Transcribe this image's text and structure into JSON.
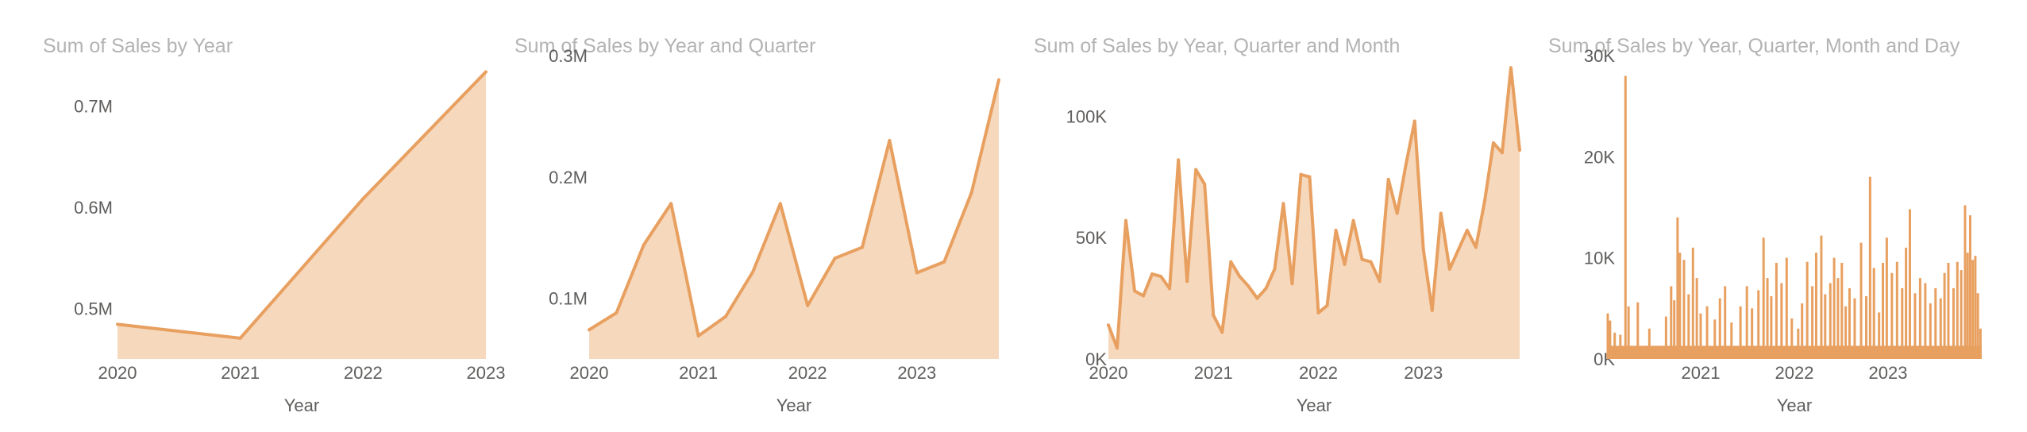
{
  "style": {
    "line_color": "#E8A060",
    "fill_color": "#F6D8BD",
    "title_color": "#B3B3B3",
    "tick_color": "#605E5C"
  },
  "chart_data": [
    {
      "type": "area",
      "title": "Sum of Sales by Year",
      "xlabel": "Year",
      "ylabel": "",
      "categories": [
        "2020",
        "2021",
        "2022",
        "2023"
      ],
      "values": [
        484247,
        470533,
        608474,
        733947
      ],
      "ylim": [
        450000,
        750000
      ],
      "yticks": [
        500000,
        600000,
        700000
      ],
      "ytick_labels": [
        "0.5M",
        "0.6M",
        "0.7M"
      ],
      "xticks": [
        0,
        1,
        2,
        3
      ],
      "xtick_labels": [
        "2020",
        "2021",
        "2022",
        "2023"
      ]
    },
    {
      "type": "area",
      "title": "Sum of Sales by Year and Quarter",
      "xlabel": "Year",
      "ylabel": "",
      "x": [
        0,
        1,
        2,
        3,
        4,
        5,
        6,
        7,
        8,
        9,
        10,
        11,
        12,
        13,
        14,
        15
      ],
      "values": [
        74000,
        88000,
        144000,
        178000,
        69000,
        85000,
        122000,
        178000,
        94000,
        133000,
        142000,
        230000,
        121000,
        130000,
        187000,
        280000
      ],
      "ylim": [
        50000,
        300000
      ],
      "yticks": [
        100000,
        200000,
        300000
      ],
      "ytick_labels": [
        "0.1M",
        "0.2M",
        "0.3M"
      ],
      "xticks": [
        0,
        4,
        8,
        12
      ],
      "xtick_labels": [
        "2020",
        "2021",
        "2022",
        "2023"
      ]
    },
    {
      "type": "area",
      "title": "Sum of Sales by Year, Quarter and Month",
      "xlabel": "Year",
      "ylabel": "",
      "x": [
        0,
        1,
        2,
        3,
        4,
        5,
        6,
        7,
        8,
        9,
        10,
        11,
        12,
        13,
        14,
        15,
        16,
        17,
        18,
        19,
        20,
        21,
        22,
        23,
        24,
        25,
        26,
        27,
        28,
        29,
        30,
        31,
        32,
        33,
        34,
        35,
        36,
        37,
        38,
        39,
        40,
        41,
        42,
        43,
        44,
        45,
        46,
        47
      ],
      "values": [
        14000,
        4500,
        57000,
        28000,
        26000,
        35000,
        34000,
        29000,
        82000,
        32000,
        78000,
        72000,
        18000,
        11000,
        40000,
        34000,
        30000,
        25000,
        29000,
        37000,
        64000,
        31000,
        76000,
        75000,
        19000,
        22000,
        53000,
        39000,
        57000,
        41000,
        40000,
        32000,
        74000,
        60000,
        80000,
        98000,
        45000,
        20000,
        60000,
        37000,
        45000,
        53000,
        46000,
        65000,
        89000,
        85000,
        120000,
        86000
      ],
      "ylim": [
        0,
        125000
      ],
      "yticks": [
        0,
        50000,
        100000
      ],
      "ytick_labels": [
        "0K",
        "50K",
        "100K"
      ],
      "xticks": [
        0,
        12,
        24,
        36
      ],
      "xtick_labels": [
        "2020",
        "2021",
        "2022",
        "2023"
      ]
    },
    {
      "type": "area",
      "title": "Sum of Sales by Year, Quarter, Month and Day",
      "xlabel": "Year",
      "ylabel": "",
      "x_range": [
        0,
        1460
      ],
      "base_level": 1300,
      "spikes": [
        {
          "x": 3,
          "value": 4500
        },
        {
          "x": 12,
          "value": 3800
        },
        {
          "x": 30,
          "value": 2600
        },
        {
          "x": 52,
          "value": 2400
        },
        {
          "x": 72,
          "value": 28000
        },
        {
          "x": 84,
          "value": 5200
        },
        {
          "x": 120,
          "value": 5600
        },
        {
          "x": 165,
          "value": 3000
        },
        {
          "x": 230,
          "value": 4200
        },
        {
          "x": 250,
          "value": 7200
        },
        {
          "x": 262,
          "value": 5800
        },
        {
          "x": 275,
          "value": 14000
        },
        {
          "x": 284,
          "value": 10500
        },
        {
          "x": 300,
          "value": 9800
        },
        {
          "x": 318,
          "value": 6400
        },
        {
          "x": 335,
          "value": 11000
        },
        {
          "x": 350,
          "value": 8000
        },
        {
          "x": 365,
          "value": 4500
        },
        {
          "x": 390,
          "value": 5200
        },
        {
          "x": 420,
          "value": 3900
        },
        {
          "x": 440,
          "value": 6000
        },
        {
          "x": 460,
          "value": 7200
        },
        {
          "x": 485,
          "value": 3600
        },
        {
          "x": 520,
          "value": 5200
        },
        {
          "x": 545,
          "value": 7200
        },
        {
          "x": 565,
          "value": 5000
        },
        {
          "x": 590,
          "value": 6800
        },
        {
          "x": 610,
          "value": 12000
        },
        {
          "x": 625,
          "value": 8000
        },
        {
          "x": 640,
          "value": 6200
        },
        {
          "x": 660,
          "value": 9500
        },
        {
          "x": 680,
          "value": 7500
        },
        {
          "x": 700,
          "value": 10000
        },
        {
          "x": 720,
          "value": 4000
        },
        {
          "x": 745,
          "value": 3000
        },
        {
          "x": 760,
          "value": 5500
        },
        {
          "x": 780,
          "value": 9600
        },
        {
          "x": 800,
          "value": 7200
        },
        {
          "x": 815,
          "value": 10500
        },
        {
          "x": 835,
          "value": 12200
        },
        {
          "x": 850,
          "value": 6400
        },
        {
          "x": 870,
          "value": 7500
        },
        {
          "x": 885,
          "value": 10000
        },
        {
          "x": 900,
          "value": 8000
        },
        {
          "x": 915,
          "value": 9500
        },
        {
          "x": 930,
          "value": 5200
        },
        {
          "x": 945,
          "value": 7000
        },
        {
          "x": 965,
          "value": 6000
        },
        {
          "x": 990,
          "value": 11500
        },
        {
          "x": 1010,
          "value": 6200
        },
        {
          "x": 1025,
          "value": 18000
        },
        {
          "x": 1040,
          "value": 9000
        },
        {
          "x": 1060,
          "value": 4600
        },
        {
          "x": 1075,
          "value": 9500
        },
        {
          "x": 1090,
          "value": 12000
        },
        {
          "x": 1110,
          "value": 8500
        },
        {
          "x": 1130,
          "value": 9600
        },
        {
          "x": 1150,
          "value": 7000
        },
        {
          "x": 1165,
          "value": 11000
        },
        {
          "x": 1180,
          "value": 14800
        },
        {
          "x": 1200,
          "value": 6500
        },
        {
          "x": 1220,
          "value": 8000
        },
        {
          "x": 1240,
          "value": 7500
        },
        {
          "x": 1260,
          "value": 5500
        },
        {
          "x": 1280,
          "value": 7000
        },
        {
          "x": 1300,
          "value": 6000
        },
        {
          "x": 1315,
          "value": 8500
        },
        {
          "x": 1330,
          "value": 9500
        },
        {
          "x": 1350,
          "value": 7000
        },
        {
          "x": 1365,
          "value": 9600
        },
        {
          "x": 1380,
          "value": 8800
        },
        {
          "x": 1395,
          "value": 15200
        },
        {
          "x": 1405,
          "value": 10500
        },
        {
          "x": 1415,
          "value": 14200
        },
        {
          "x": 1425,
          "value": 9800
        },
        {
          "x": 1435,
          "value": 10200
        },
        {
          "x": 1445,
          "value": 6500
        },
        {
          "x": 1455,
          "value": 3000
        }
      ],
      "ylim": [
        0,
        30000
      ],
      "yticks": [
        0,
        10000,
        20000,
        30000
      ],
      "ytick_labels": [
        "0K",
        "10K",
        "20K",
        "30K"
      ],
      "xticks": [
        365,
        730,
        1095
      ],
      "xtick_labels": [
        "2021",
        "2022",
        "2023"
      ]
    }
  ]
}
